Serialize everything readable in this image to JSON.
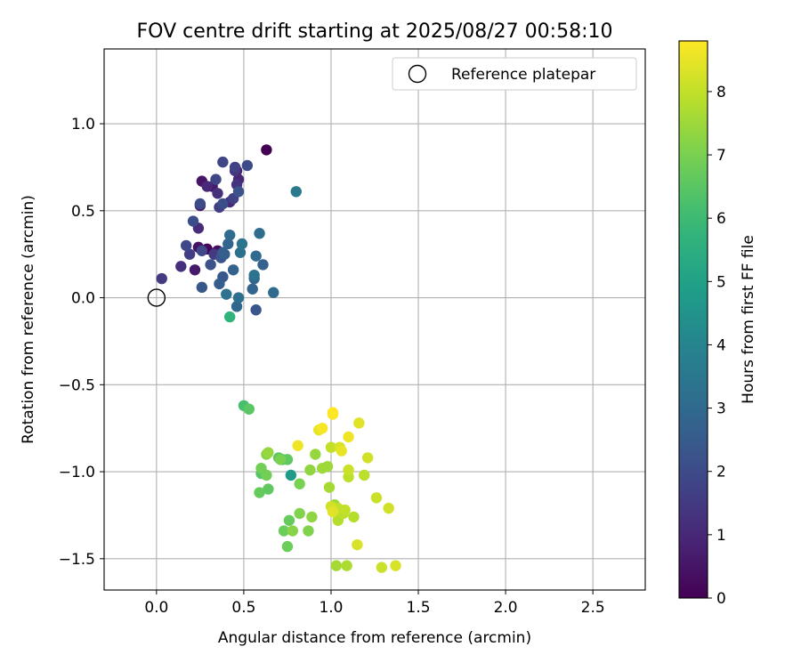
{
  "chart_data": {
    "type": "scatter",
    "title": "FOV centre drift starting at 2025/08/27 00:58:10",
    "xlabel": "Angular distance from reference (arcmin)",
    "ylabel": "Rotation from reference (arcmin)",
    "xlim": [
      -0.3,
      2.8
    ],
    "ylim": [
      -1.68,
      1.43
    ],
    "x_ticks": [
      0.0,
      0.5,
      1.0,
      1.5,
      2.0,
      2.5
    ],
    "x_tick_labels": [
      "0.0",
      "0.5",
      "1.0",
      "1.5",
      "2.0",
      "2.5"
    ],
    "y_ticks": [
      -1.5,
      -1.0,
      -0.5,
      0.0,
      0.5,
      1.0
    ],
    "y_tick_labels": [
      "−1.5",
      "−1.0",
      "−0.5",
      "0.0",
      "0.5",
      "1.0"
    ],
    "grid": true,
    "legend_position": "top-right",
    "legend": [
      {
        "label": "Reference platepar",
        "marker": "open-circle"
      }
    ],
    "reference": {
      "x": 0.0,
      "y": 0.0
    },
    "colorbar": {
      "label": "Hours from first FF file",
      "range": [
        0,
        8.8
      ],
      "ticks": [
        0,
        1,
        2,
        3,
        4,
        5,
        6,
        7,
        8
      ],
      "tick_labels": [
        "0",
        "1",
        "2",
        "3",
        "4",
        "5",
        "6",
        "7",
        "8"
      ],
      "colormap": "viridis"
    },
    "points": [
      [
        0.63,
        0.85,
        0.0
      ],
      [
        0.29,
        0.28,
        0.1
      ],
      [
        0.35,
        0.27,
        0.3
      ],
      [
        0.24,
        0.29,
        0.4
      ],
      [
        0.26,
        0.67,
        0.5
      ],
      [
        0.22,
        0.16,
        0.6
      ],
      [
        0.32,
        0.64,
        0.6
      ],
      [
        0.25,
        0.53,
        0.7
      ],
      [
        0.46,
        0.73,
        0.8
      ],
      [
        0.47,
        0.68,
        0.9
      ],
      [
        0.42,
        0.55,
        1.0
      ],
      [
        0.29,
        0.64,
        1.0
      ],
      [
        0.24,
        0.4,
        1.1
      ],
      [
        0.14,
        0.18,
        1.2
      ],
      [
        0.35,
        0.6,
        1.2
      ],
      [
        0.46,
        0.65,
        1.3
      ],
      [
        0.45,
        0.73,
        1.4
      ],
      [
        0.03,
        0.11,
        1.5
      ],
      [
        0.33,
        0.25,
        1.5
      ],
      [
        0.36,
        0.52,
        1.6
      ],
      [
        0.19,
        0.25,
        1.6
      ],
      [
        0.44,
        0.57,
        1.7
      ],
      [
        0.45,
        0.75,
        1.7
      ],
      [
        0.34,
        0.68,
        1.8
      ],
      [
        0.38,
        0.78,
        1.8
      ],
      [
        0.26,
        0.27,
        1.9
      ],
      [
        0.17,
        0.3,
        1.9
      ],
      [
        0.52,
        0.76,
        2.0
      ],
      [
        0.25,
        0.54,
        2.0
      ],
      [
        0.21,
        0.44,
        2.1
      ],
      [
        0.38,
        0.54,
        2.1
      ],
      [
        0.47,
        0.61,
        2.2
      ],
      [
        0.31,
        0.19,
        2.2
      ],
      [
        0.57,
        -0.07,
        2.3
      ],
      [
        0.37,
        0.23,
        2.3
      ],
      [
        0.38,
        0.12,
        2.4
      ],
      [
        0.26,
        0.06,
        2.4
      ],
      [
        0.38,
        0.26,
        2.5
      ],
      [
        0.36,
        0.08,
        2.6
      ],
      [
        0.39,
        0.25,
        2.6
      ],
      [
        0.44,
        0.16,
        2.7
      ],
      [
        0.61,
        0.19,
        2.7
      ],
      [
        0.41,
        0.31,
        2.8
      ],
      [
        0.55,
        0.05,
        2.8
      ],
      [
        0.46,
        -0.05,
        2.9
      ],
      [
        0.56,
        0.11,
        2.9
      ],
      [
        0.67,
        0.03,
        3.0
      ],
      [
        0.57,
        0.24,
        3.0
      ],
      [
        0.59,
        0.37,
        3.1
      ],
      [
        0.42,
        0.36,
        3.1
      ],
      [
        0.48,
        0.26,
        3.2
      ],
      [
        0.47,
        0.0,
        3.2
      ],
      [
        0.4,
        0.02,
        3.3
      ],
      [
        0.56,
        0.13,
        3.3
      ],
      [
        0.49,
        0.31,
        3.4
      ],
      [
        0.8,
        0.61,
        3.6
      ],
      [
        0.77,
        -1.02,
        4.8
      ],
      [
        0.72,
        -0.93,
        5.5
      ],
      [
        0.42,
        -0.11,
        5.7
      ],
      [
        0.5,
        -0.62,
        6.2
      ],
      [
        0.53,
        -0.64,
        6.5
      ],
      [
        0.6,
        -1.01,
        6.4
      ],
      [
        0.7,
        -0.92,
        6.5
      ],
      [
        0.75,
        -0.93,
        6.6
      ],
      [
        0.64,
        -1.1,
        6.6
      ],
      [
        0.59,
        -1.12,
        6.7
      ],
      [
        0.76,
        -1.28,
        6.7
      ],
      [
        0.73,
        -1.34,
        6.8
      ],
      [
        0.75,
        -1.43,
        6.8
      ],
      [
        0.6,
        -0.98,
        6.9
      ],
      [
        0.63,
        -1.02,
        6.9
      ],
      [
        0.71,
        -0.93,
        7.0
      ],
      [
        0.82,
        -1.07,
        7.0
      ],
      [
        0.82,
        -1.24,
        7.1
      ],
      [
        0.87,
        -1.34,
        7.1
      ],
      [
        0.78,
        -1.34,
        7.2
      ],
      [
        0.63,
        -0.9,
        7.2
      ],
      [
        0.89,
        -1.26,
        7.3
      ],
      [
        0.88,
        -0.99,
        7.3
      ],
      [
        0.64,
        -0.89,
        7.4
      ],
      [
        0.91,
        -0.9,
        7.4
      ],
      [
        0.95,
        -0.98,
        7.5
      ],
      [
        1.02,
        -1.19,
        7.5
      ],
      [
        0.98,
        -0.97,
        7.5
      ],
      [
        0.99,
        -1.09,
        7.6
      ],
      [
        1.03,
        -1.54,
        7.6
      ],
      [
        1.09,
        -1.54,
        7.7
      ],
      [
        1.04,
        -1.25,
        7.7
      ],
      [
        1.13,
        -1.26,
        7.8
      ],
      [
        1.04,
        -1.28,
        7.8
      ],
      [
        1.1,
        -1.03,
        7.9
      ],
      [
        1.07,
        -1.24,
        7.9
      ],
      [
        1.19,
        -1.02,
        7.9
      ],
      [
        1.08,
        -1.22,
        8.0
      ],
      [
        1.04,
        -1.21,
        8.0
      ],
      [
        1.0,
        -0.86,
        8.0
      ],
      [
        1.1,
        -0.99,
        8.1
      ],
      [
        1.26,
        -1.15,
        8.1
      ],
      [
        1.29,
        -1.55,
        8.1
      ],
      [
        1.21,
        -0.92,
        8.2
      ],
      [
        1.0,
        -1.2,
        8.2
      ],
      [
        1.33,
        -1.21,
        8.2
      ],
      [
        1.37,
        -1.54,
        8.3
      ],
      [
        1.15,
        -1.42,
        8.3
      ],
      [
        1.05,
        -0.86,
        8.3
      ],
      [
        1.16,
        -0.72,
        8.4
      ],
      [
        1.01,
        -1.23,
        8.4
      ],
      [
        0.93,
        -0.76,
        8.5
      ],
      [
        1.06,
        -0.88,
        8.5
      ],
      [
        1.1,
        -0.8,
        8.6
      ],
      [
        0.81,
        -0.85,
        8.6
      ],
      [
        1.01,
        -0.67,
        8.7
      ],
      [
        1.01,
        -0.66,
        8.8
      ],
      [
        0.95,
        -0.75,
        8.7
      ]
    ]
  }
}
